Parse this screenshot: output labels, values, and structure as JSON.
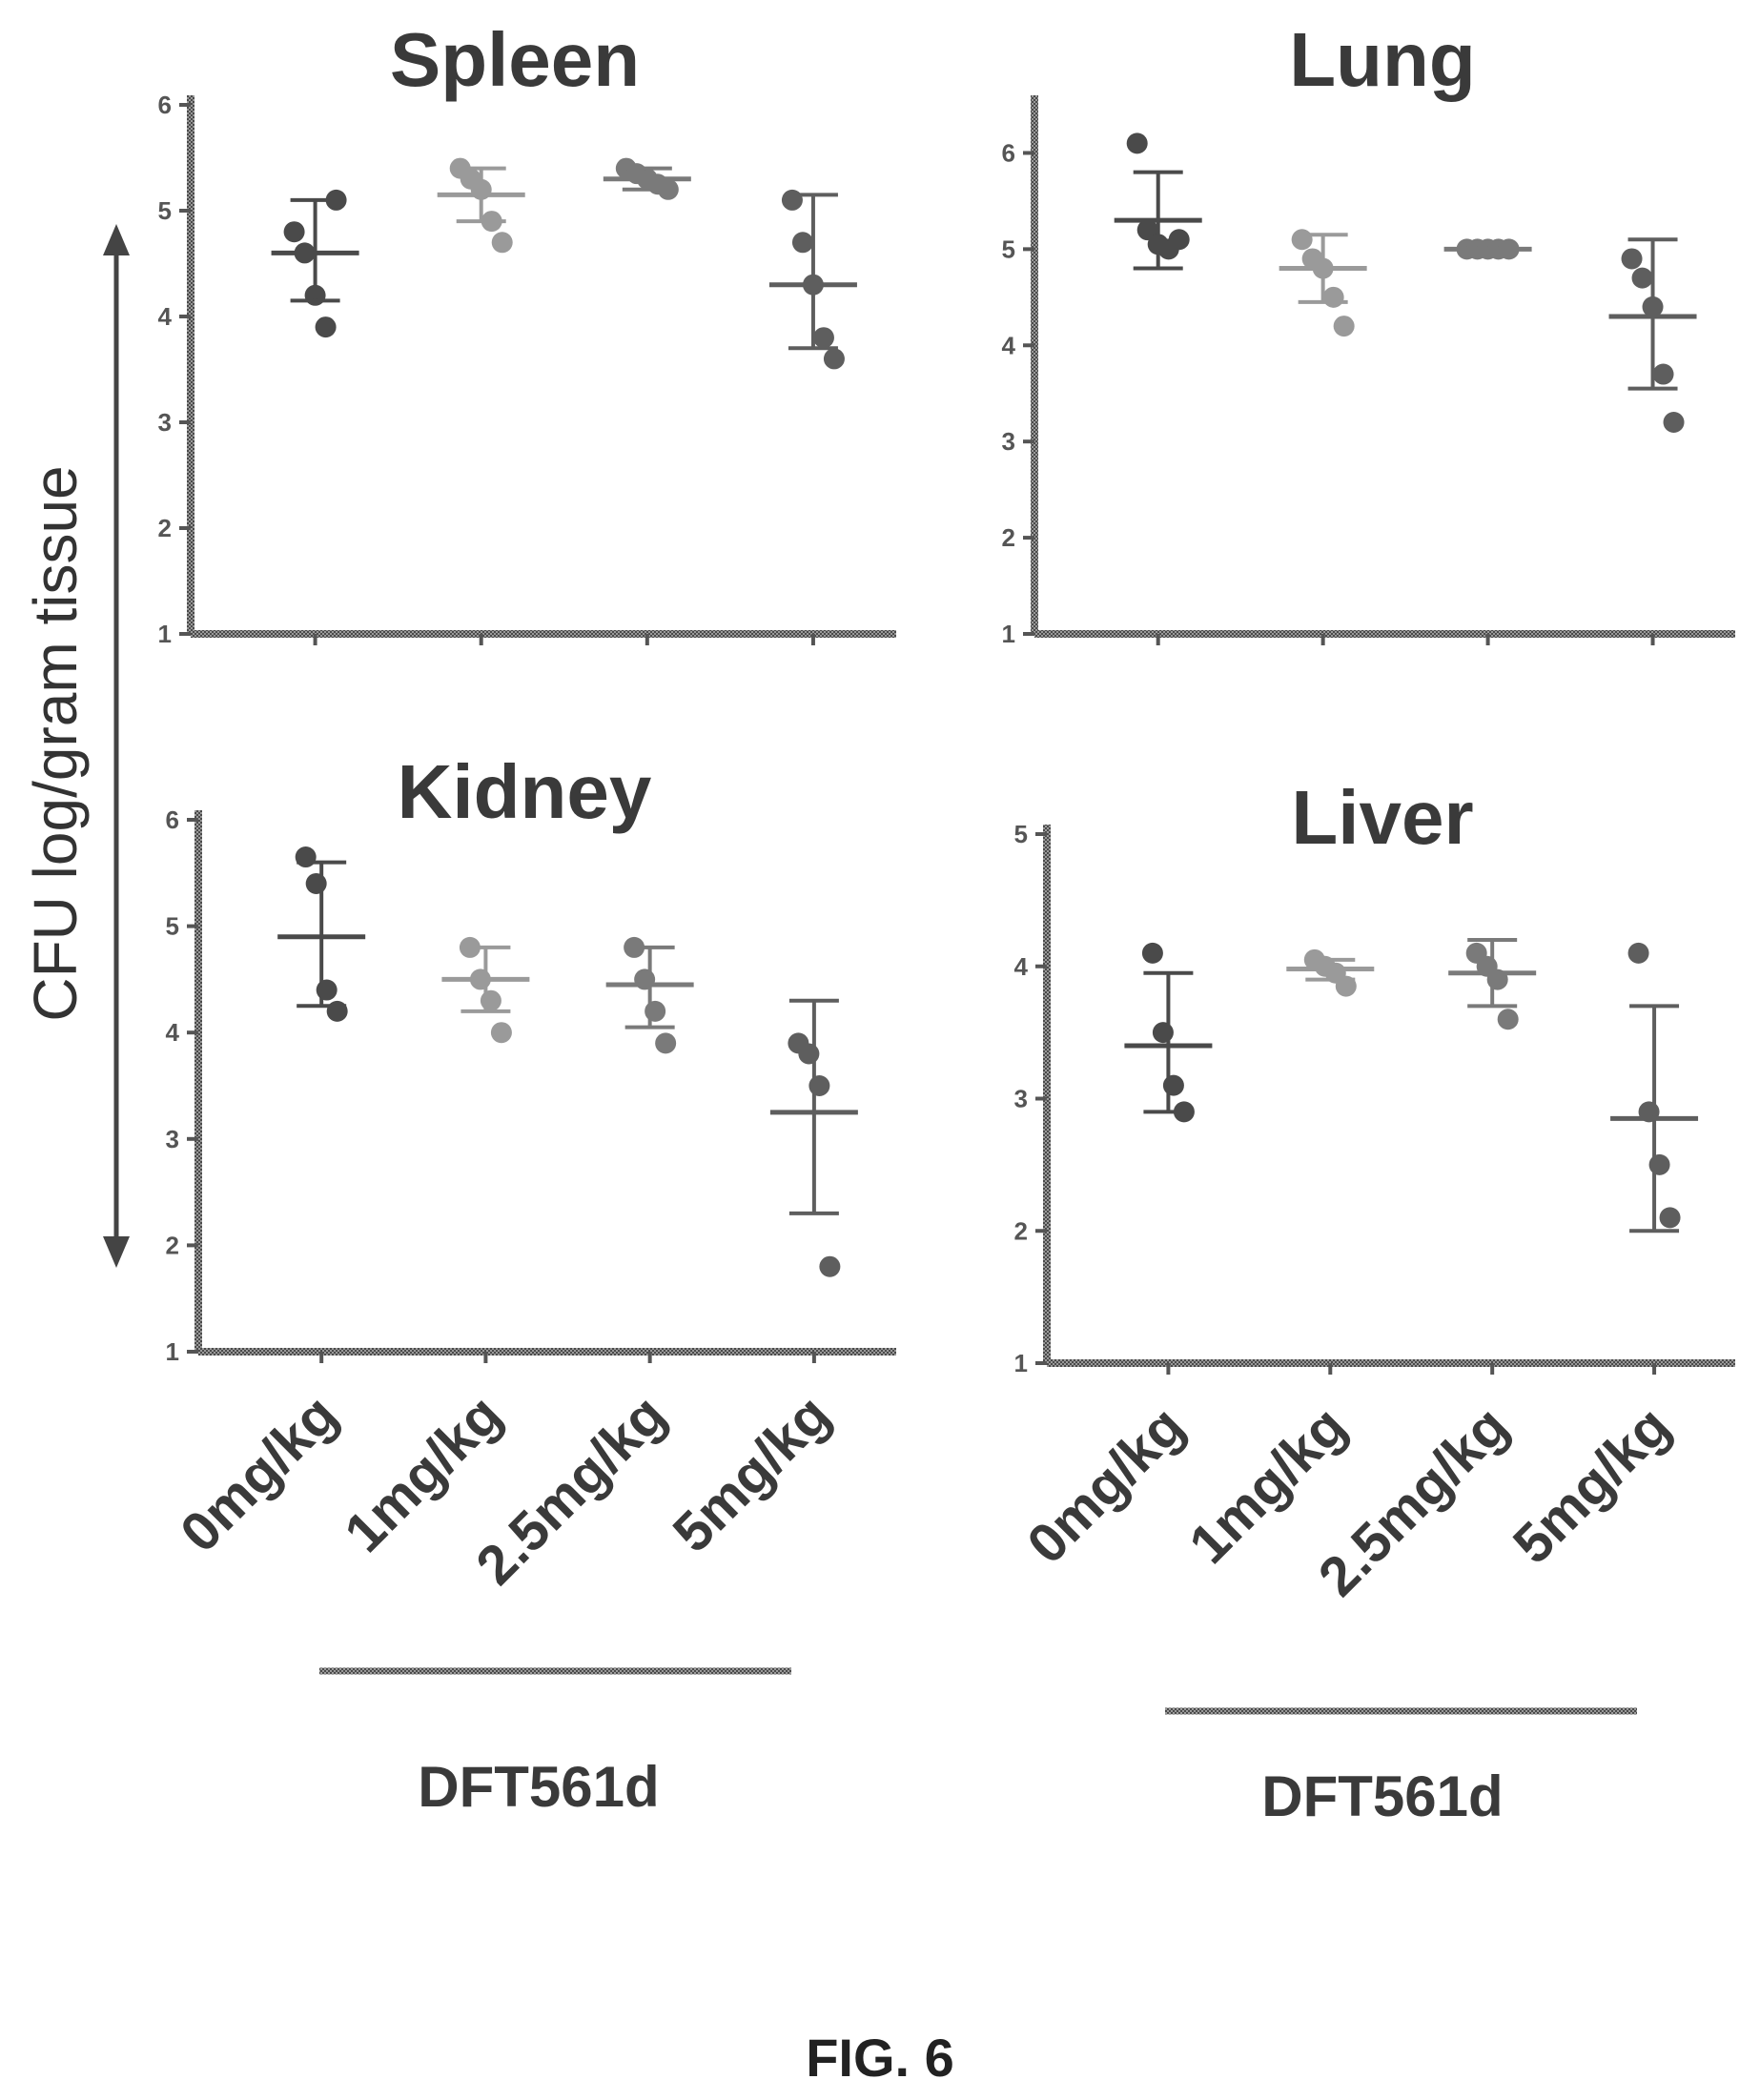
{
  "figure": {
    "caption": "FIG. 6",
    "ylabel": "CFU log/gram tissue",
    "group_label": "DFT561d"
  },
  "chart_data": [
    {
      "type": "scatter",
      "title": "Spleen",
      "ylim": [
        1,
        6
      ],
      "yticks": [
        "1",
        "2",
        "3",
        "4",
        "5",
        "6"
      ],
      "categories": [
        "0mg/kg",
        "1mg/kg",
        "2.5mg/kg",
        "5mg/kg"
      ],
      "points": [
        [
          4.8,
          4.6,
          4.2,
          3.9,
          5.1
        ],
        [
          5.4,
          5.3,
          5.2,
          4.9,
          4.7
        ],
        [
          5.4,
          5.35,
          5.3,
          5.25,
          5.2
        ],
        [
          5.1,
          4.7,
          4.3,
          3.8,
          3.6
        ]
      ],
      "mean": [
        4.6,
        5.15,
        5.3,
        4.3
      ],
      "sd_low": [
        4.15,
        4.9,
        5.2,
        3.7
      ],
      "sd_high": [
        5.1,
        5.4,
        5.4,
        5.15
      ]
    },
    {
      "type": "scatter",
      "title": "Lung",
      "ylim": [
        1,
        6.5
      ],
      "yticks": [
        "1",
        "2",
        "3",
        "4",
        "5",
        "6"
      ],
      "categories": [
        "0mg/kg",
        "1mg/kg",
        "2.5mg/kg",
        "5mg/kg"
      ],
      "points": [
        [
          6.1,
          5.2,
          5.05,
          5.0,
          5.1
        ],
        [
          5.1,
          4.9,
          4.8,
          4.5,
          4.2
        ],
        [
          5.0,
          5.0,
          5.0,
          5.0,
          5.0
        ],
        [
          4.9,
          4.7,
          4.4,
          3.7,
          3.2
        ]
      ],
      "mean": [
        5.3,
        4.8,
        5.0,
        4.3
      ],
      "sd_low": [
        4.8,
        4.45,
        5.0,
        3.55
      ],
      "sd_high": [
        5.8,
        5.15,
        5.0,
        5.1
      ]
    },
    {
      "type": "scatter",
      "title": "Kidney",
      "ylim": [
        1,
        6
      ],
      "yticks": [
        "1",
        "2",
        "3",
        "4",
        "5",
        "6"
      ],
      "categories": [
        "0mg/kg",
        "1mg/kg",
        "2.5mg/kg",
        "5mg/kg"
      ],
      "points": [
        [
          5.65,
          5.4,
          4.4,
          4.2
        ],
        [
          4.8,
          4.5,
          4.3,
          4.0
        ],
        [
          4.8,
          4.5,
          4.2,
          3.9
        ],
        [
          3.9,
          3.8,
          3.5,
          1.8
        ]
      ],
      "mean": [
        4.9,
        4.5,
        4.45,
        3.25
      ],
      "sd_low": [
        4.25,
        4.2,
        4.05,
        2.3
      ],
      "sd_high": [
        5.6,
        4.8,
        4.8,
        4.3
      ]
    },
    {
      "type": "scatter",
      "title": "Liver",
      "ylim": [
        1,
        5
      ],
      "yticks": [
        "1",
        "2",
        "3",
        "4",
        "5"
      ],
      "categories": [
        "0mg/kg",
        "1mg/kg",
        "2.5mg/kg",
        "5mg/kg"
      ],
      "points": [
        [
          4.1,
          3.5,
          3.1,
          2.9
        ],
        [
          4.05,
          4.0,
          3.95,
          3.85
        ],
        [
          4.1,
          4.0,
          3.9,
          3.6
        ],
        [
          4.1,
          2.9,
          2.5,
          2.1
        ]
      ],
      "mean": [
        3.4,
        3.98,
        3.95,
        2.85
      ],
      "sd_low": [
        2.9,
        3.9,
        3.7,
        2.0
      ],
      "sd_high": [
        3.95,
        4.05,
        4.2,
        3.7
      ]
    }
  ]
}
